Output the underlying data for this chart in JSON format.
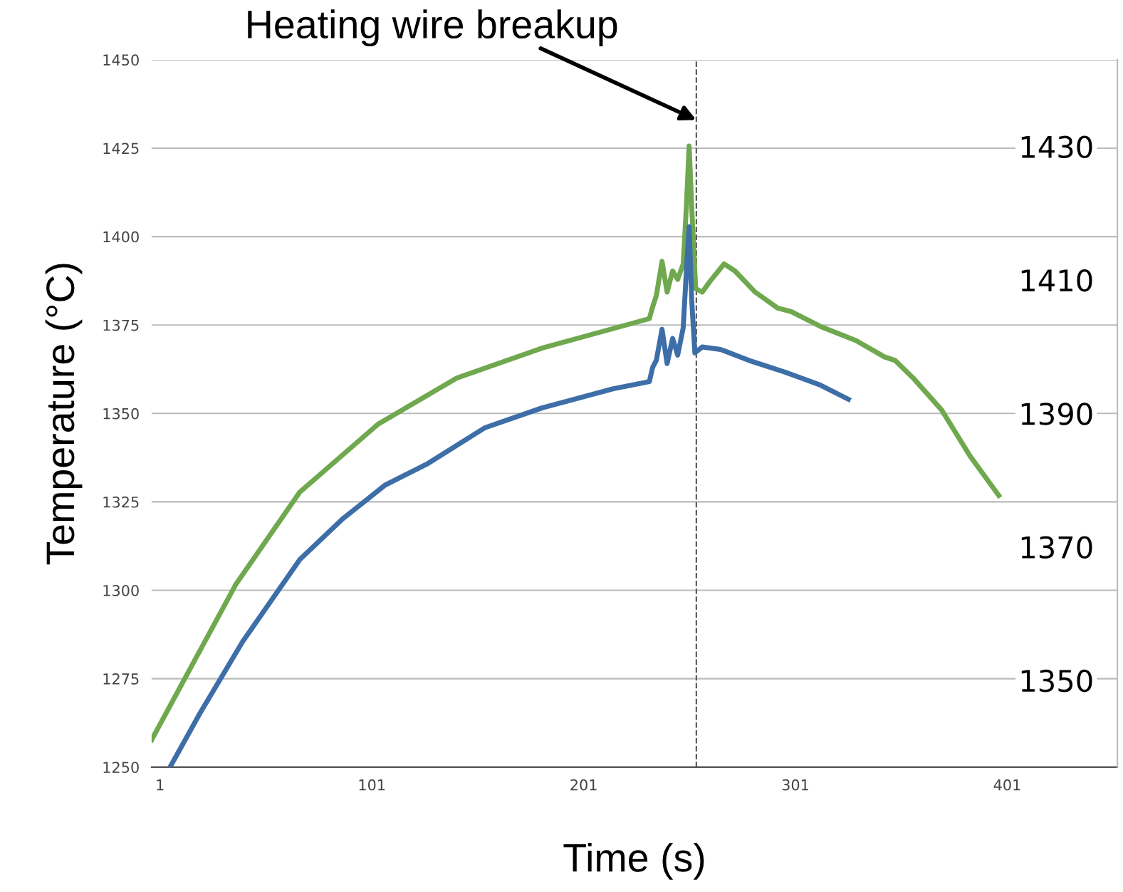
{
  "chart_data": {
    "type": "line",
    "xlabel": "Time (s)",
    "ylabel": "Temperature (°C)",
    "xlim": [
      -3,
      453
    ],
    "xticks": [
      1,
      101,
      201,
      301,
      401
    ],
    "ylim": [
      1250,
      1450
    ],
    "yticks": [
      1250,
      1275,
      1300,
      1325,
      1350,
      1375,
      1400,
      1425,
      1450
    ],
    "y2lim": [
      1337,
      1443
    ],
    "y2ticks": [
      1350,
      1370,
      1390,
      1410,
      1430
    ],
    "grid": "y",
    "legend": false,
    "marker": "none",
    "line_style": "solid",
    "ref_lines": [
      {
        "axis": "x",
        "value": 254.2,
        "label": null,
        "color": "#555555",
        "line_style": "dashed"
      }
    ],
    "annotations": [
      {
        "text": "Heating wire breakup",
        "x": 254.2,
        "y": 1433
      }
    ],
    "series": [
      {
        "color": "#6fa84e",
        "x": [
          -3,
          13,
          36.7,
          67,
          104,
          141,
          181.5,
          232,
          233.6,
          235.3,
          238,
          240.4,
          243,
          245.4,
          248,
          249.5,
          250.8,
          252,
          253.9,
          257,
          260.6,
          267.3,
          272.4,
          282,
          292.6,
          299,
          312.8,
          329.6,
          343,
          348,
          356.6,
          370,
          383.5,
          397
        ],
        "values": [
          1257.7,
          1275.4,
          1301.6,
          1327.8,
          1347,
          1360,
          1368.5,
          1376.8,
          1380.2,
          1383.3,
          1393,
          1384.3,
          1390.3,
          1387.9,
          1392.3,
          1408.5,
          1425.6,
          1408.5,
          1385.3,
          1384.3,
          1387.3,
          1392.3,
          1390.3,
          1384.3,
          1379.8,
          1378.8,
          1374.6,
          1370.6,
          1366,
          1365,
          1360,
          1351,
          1337.9,
          1326.8
        ]
      },
      {
        "color": "#3d6ea8",
        "x": [
          5.7,
          19.9,
          40,
          67,
          87.2,
          107.4,
          127.6,
          154.5,
          181.5,
          215,
          232,
          233.6,
          235.3,
          238,
          240.4,
          243,
          245.4,
          248,
          249.5,
          250.8,
          252,
          253.5,
          257,
          265.6,
          279,
          296,
          312.8,
          326
        ],
        "values": [
          1250,
          1265.3,
          1285.5,
          1308.7,
          1320.2,
          1329.8,
          1335.9,
          1346,
          1351.6,
          1357,
          1359,
          1363.1,
          1365,
          1373.8,
          1364.1,
          1371.2,
          1366.5,
          1374.2,
          1390.3,
          1402.8,
          1382.3,
          1367.1,
          1368.8,
          1368.1,
          1365,
          1361.7,
          1358,
          1354
        ]
      }
    ]
  }
}
